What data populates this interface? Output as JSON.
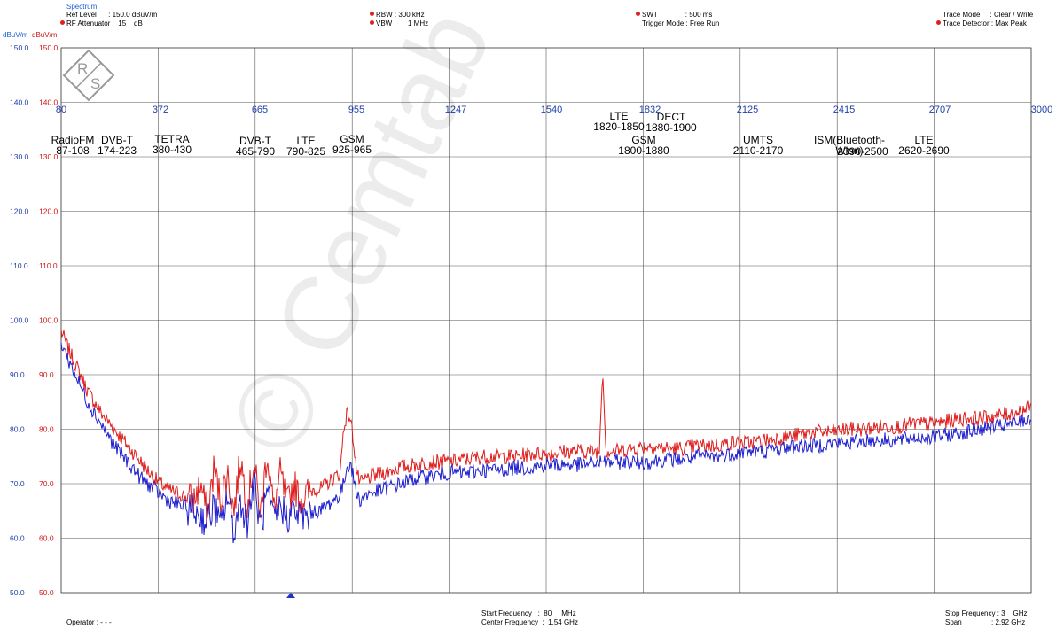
{
  "header": {
    "spectrum_label": "Spectrum",
    "ref_level": "Ref Level      : 150.0 dBuV/m",
    "rf_attenuator": "RF Attenuator    15    dB",
    "rbw": "RBW : 300 kHz",
    "vbw": "VBW :      1 MHz",
    "swt": "SWT              : 500 ms",
    "trigger_mode": "Trigger Mode : Free Run",
    "trace_mode": "Trace Mode     : Clear / Write",
    "trace_detector": "Trace Detector : Max Peak",
    "unit_left_blue": "dBuV/m",
    "unit_left_red": "dBuV/m"
  },
  "footer": {
    "operator": "Operator : - - -",
    "start_frequency": "Start Frequency   :  80     MHz",
    "center_frequency": "Center Frequency  :  1.54 GHz",
    "stop_frequency": "Stop Frequency : 3    GHz",
    "span": "Span               : 2.92 GHz"
  },
  "watermark": {
    "rs_logo_text": "R S",
    "text": "© Cemtab"
  },
  "chart_data": {
    "type": "line",
    "title": "",
    "xlabel": "",
    "ylabel": "dBuV/m",
    "xlim": [
      80,
      3000
    ],
    "ylim": [
      50,
      150
    ],
    "grid": true,
    "x_unit": "MHz",
    "x_tick_labels": [
      "80",
      "372",
      "665",
      "955",
      "1247",
      "1540",
      "1832",
      "2125",
      "2415",
      "2707",
      "3000"
    ],
    "y_tick_labels": [
      "150.0",
      "140.0",
      "130.0",
      "120.0",
      "110.0",
      "100.0",
      "90.0",
      "80.0",
      "70.0",
      "60.0",
      "50.0"
    ],
    "y_tick_values": [
      150,
      140,
      130,
      120,
      110,
      100,
      90,
      80,
      70,
      60,
      50
    ],
    "band_labels": [
      {
        "lines": [
          "RadioFM",
          "87-108"
        ]
      },
      {
        "lines": [
          "DVB-T",
          "174-223"
        ]
      },
      {
        "lines": [
          "TETRA",
          "380-430"
        ]
      },
      {
        "lines": [
          "DVB-T",
          "465-790"
        ]
      },
      {
        "lines": [
          "LTE",
          "790-825"
        ]
      },
      {
        "lines": [
          "GSM",
          "925-965"
        ]
      },
      {
        "lines": [
          "LTE",
          "1820-1850"
        ]
      },
      {
        "lines": [
          "DECT",
          "1880-1900"
        ]
      },
      {
        "lines": [
          "GSM",
          "1800-1880"
        ]
      },
      {
        "lines": [
          "UMTS",
          "2110-2170"
        ]
      },
      {
        "lines": [
          "ISM(Bluetooth-",
          "Wlan)"
        ]
      },
      {
        "lines": [
          "2390-2500"
        ]
      },
      {
        "lines": [
          "LTE",
          "2620-2690"
        ]
      }
    ],
    "series": [
      {
        "color": "#e01a1a",
        "x": [
          80,
          100,
          130,
          160,
          200,
          240,
          280,
          320,
          360,
          400,
          440,
          480,
          500,
          520,
          540,
          560,
          580,
          600,
          620,
          640,
          660,
          680,
          700,
          720,
          740,
          760,
          780,
          800,
          820,
          840,
          860,
          880,
          900,
          920,
          930,
          940,
          950,
          960,
          970,
          980,
          1000,
          1050,
          1100,
          1150,
          1200,
          1250,
          1300,
          1350,
          1400,
          1450,
          1500,
          1550,
          1600,
          1650,
          1700,
          1710,
          1720,
          1730,
          1750,
          1800,
          1850,
          1900,
          1950,
          2000,
          2050,
          2100,
          2150,
          2200,
          2250,
          2300,
          2350,
          2400,
          2450,
          2500,
          2550,
          2600,
          2650,
          2700,
          2750,
          2800,
          2850,
          2900,
          2950,
          3000
        ],
        "y": [
          98,
          95,
          91,
          87,
          83,
          80,
          77,
          74,
          71,
          69,
          68,
          67,
          70,
          64,
          73,
          67,
          72,
          65,
          75,
          66,
          74,
          64,
          76,
          65,
          72,
          66,
          70,
          67,
          68,
          69,
          69,
          70,
          71,
          72,
          80,
          83,
          82,
          78,
          72,
          70,
          71,
          72,
          73,
          73.5,
          74,
          74,
          74.5,
          75,
          75,
          75,
          75.5,
          75.5,
          76,
          76,
          76,
          90.5,
          76,
          76,
          76,
          76.5,
          77,
          76.5,
          76.5,
          77,
          77,
          77.5,
          77.5,
          78,
          78.5,
          79,
          79.5,
          79.5,
          80,
          80,
          80.5,
          80.5,
          81,
          81,
          81.5,
          82,
          82,
          82.5,
          83,
          84
        ]
      },
      {
        "color": "#1c1ccf",
        "x": [
          80,
          100,
          130,
          160,
          200,
          240,
          280,
          320,
          360,
          400,
          440,
          480,
          500,
          520,
          540,
          560,
          580,
          600,
          620,
          640,
          660,
          680,
          700,
          720,
          740,
          760,
          780,
          800,
          820,
          840,
          860,
          880,
          900,
          920,
          930,
          940,
          950,
          960,
          970,
          980,
          1000,
          1050,
          1100,
          1150,
          1200,
          1250,
          1300,
          1350,
          1400,
          1450,
          1500,
          1550,
          1600,
          1650,
          1700,
          1750,
          1800,
          1850,
          1900,
          1950,
          2000,
          2050,
          2100,
          2150,
          2200,
          2250,
          2300,
          2350,
          2400,
          2450,
          2500,
          2550,
          2600,
          2650,
          2700,
          2750,
          2800,
          2850,
          2900,
          2950,
          3000
        ],
        "y": [
          96,
          93,
          89,
          85,
          81,
          77,
          74,
          71,
          69,
          67,
          66,
          65,
          64,
          63,
          66,
          62,
          68,
          61,
          67,
          63,
          70,
          62,
          68,
          63,
          66,
          64,
          65,
          64,
          64,
          65,
          65,
          66,
          67,
          68,
          70,
          73,
          74,
          71,
          68,
          67,
          68,
          69,
          70,
          71,
          71.5,
          72,
          72,
          72.5,
          72.5,
          73,
          73,
          73.5,
          73.5,
          73.5,
          74,
          74,
          74,
          74,
          74.5,
          74.5,
          75,
          75,
          75.5,
          76,
          76,
          76.5,
          77,
          77,
          77.5,
          77.5,
          78,
          78,
          78,
          78.5,
          78.5,
          79,
          79.5,
          80,
          80.5,
          81,
          82
        ]
      }
    ]
  }
}
